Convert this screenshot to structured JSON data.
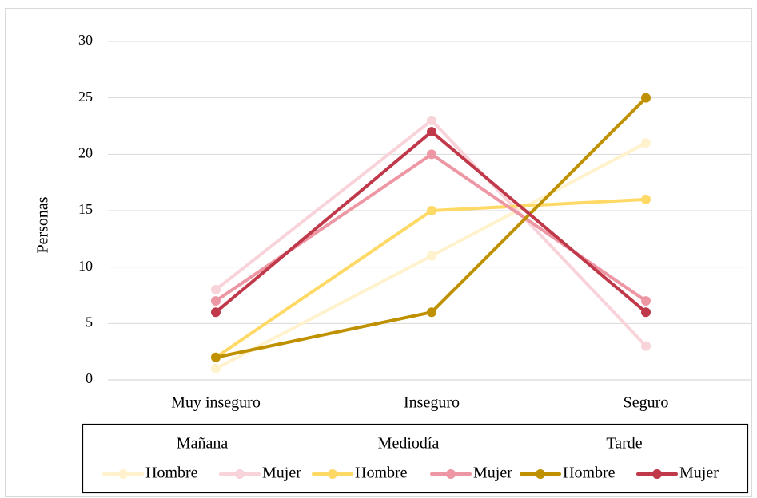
{
  "chart_data": {
    "type": "line",
    "title": "",
    "ylabel": "Personas",
    "xlabel": "",
    "categories": [
      "Muy inseguro",
      "Inseguro",
      "Seguro"
    ],
    "ylim": [
      0,
      30
    ],
    "yticks": [
      0,
      5,
      10,
      15,
      20,
      25,
      30
    ],
    "grid": "horizontal",
    "legend": {
      "placement": "bottom",
      "groups": [
        "Mañana",
        "Mediodía",
        "Tarde"
      ]
    },
    "series": [
      {
        "name": "Hombre",
        "group": "Mañana",
        "color": "#FFF2CC",
        "values": [
          1,
          11,
          21
        ]
      },
      {
        "name": "Mujer",
        "group": "Mañana",
        "color": "#F8D3D9",
        "values": [
          8,
          23,
          3
        ]
      },
      {
        "name": "Hombre",
        "group": "Mediodía",
        "color": "#FFD966",
        "values": [
          2,
          15,
          16
        ]
      },
      {
        "name": "Mujer",
        "group": "Mediodía",
        "color": "#EE97A4",
        "values": [
          7,
          20,
          7
        ]
      },
      {
        "name": "Hombre",
        "group": "Tarde",
        "color": "#BF9000",
        "values": [
          2,
          6,
          25
        ]
      },
      {
        "name": "Mujer",
        "group": "Tarde",
        "color": "#C0394B",
        "values": [
          6,
          22,
          6
        ]
      }
    ]
  }
}
